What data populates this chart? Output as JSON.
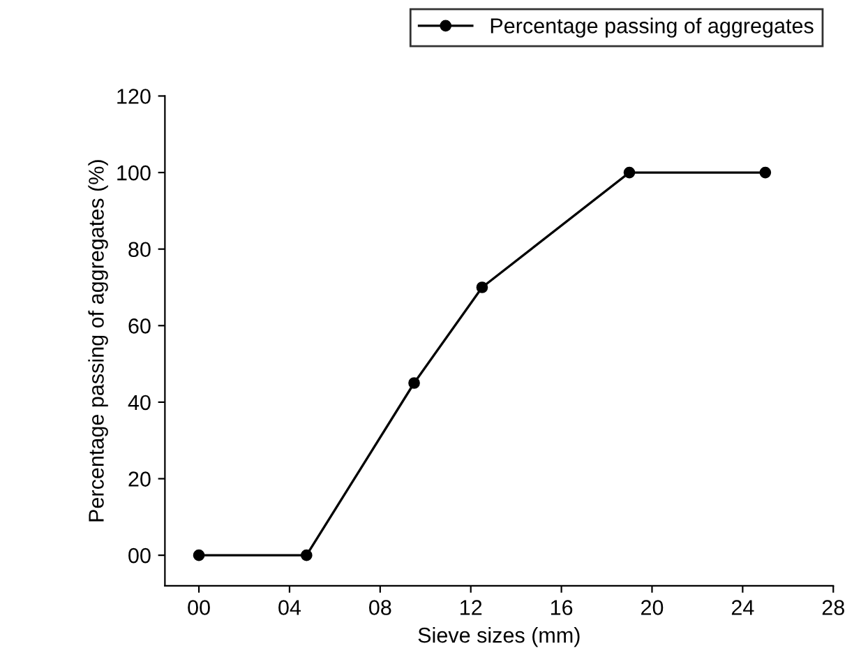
{
  "chart_data": {
    "type": "line",
    "xlabel": "Sieve sizes (mm)",
    "ylabel": "Percentage passing of aggregates (%)",
    "x": [
      0,
      4.75,
      9.5,
      12.5,
      19,
      25
    ],
    "series": [
      {
        "name": "Percentage passing of aggregates",
        "color": "#000000",
        "values": [
          0,
          0,
          45,
          70,
          100,
          100
        ]
      }
    ],
    "xlim": [
      -1.5,
      28
    ],
    "ylim": [
      -8,
      120
    ],
    "xticks": [
      {
        "value": 0,
        "label": "00"
      },
      {
        "value": 4,
        "label": "04"
      },
      {
        "value": 8,
        "label": "08"
      },
      12,
      16,
      20,
      24,
      28
    ],
    "yticks": [
      {
        "value": 0,
        "label": "00"
      },
      20,
      40,
      60,
      80,
      100,
      120
    ],
    "marker": "circle",
    "line_style": "solid",
    "grid": false,
    "legend": "top right"
  }
}
